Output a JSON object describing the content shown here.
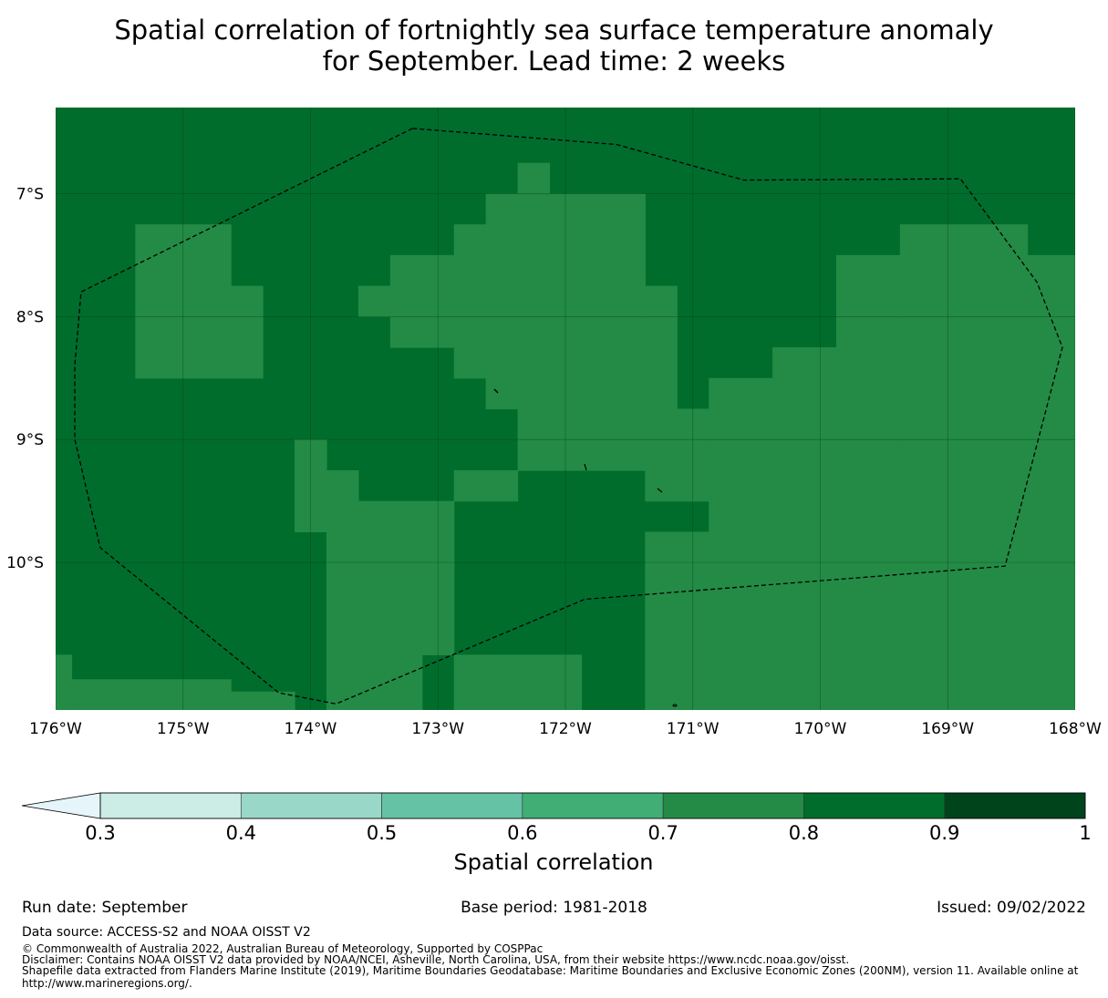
{
  "title_line1": "Spatial correlation of fortnightly sea surface temperature anomaly",
  "title_line2": "for September. Lead time: 2 weeks",
  "map": {
    "lon_range": [
      -176,
      -168
    ],
    "lat_range": [
      -11.2,
      -6.3
    ],
    "lon_ticks": [
      {
        "value": -176,
        "label": "176°W"
      },
      {
        "value": -175,
        "label": "175°W"
      },
      {
        "value": -174,
        "label": "174°W"
      },
      {
        "value": -173,
        "label": "173°W"
      },
      {
        "value": -172,
        "label": "172°W"
      },
      {
        "value": -171,
        "label": "171°W"
      },
      {
        "value": -170,
        "label": "170°W"
      },
      {
        "value": -169,
        "label": "169°W"
      },
      {
        "value": -168,
        "label": "168°W"
      }
    ],
    "lat_ticks": [
      {
        "value": -7,
        "label": "7°S"
      },
      {
        "value": -8,
        "label": "8°S"
      },
      {
        "value": -9,
        "label": "9°S"
      },
      {
        "value": -10,
        "label": "10°S"
      }
    ],
    "field_background_class": "0.8-0.9",
    "field_patches_class_0.7_0.8": [
      {
        "lon": [
          -175.375,
          -174.625
        ],
        "lat": [
          -8.5,
          -7.25
        ]
      },
      {
        "lon": [
          -174.625,
          -174.375
        ],
        "lat": [
          -8.5,
          -7.75
        ]
      },
      {
        "lon": [
          -173.625,
          -172.375
        ],
        "lat": [
          -8.0,
          -7.75
        ]
      },
      {
        "lon": [
          -173.375,
          -172.375
        ],
        "lat": [
          -8.25,
          -7.5
        ]
      },
      {
        "lon": [
          -172.875,
          -172.375
        ],
        "lat": [
          -8.5,
          -7.25
        ]
      },
      {
        "lon": [
          -172.625,
          -171.375
        ],
        "lat": [
          -8.75,
          -7.0
        ]
      },
      {
        "lon": [
          -172.375,
          -172.125
        ],
        "lat": [
          -7.0,
          -6.75
        ]
      },
      {
        "lon": [
          -171.375,
          -171.125
        ],
        "lat": [
          -8.75,
          -7.75
        ]
      },
      {
        "lon": [
          -172.375,
          -170.875
        ],
        "lat": [
          -9.25,
          -8.75
        ]
      },
      {
        "lon": [
          -170.875,
          -170.375
        ],
        "lat": [
          -9.25,
          -8.5
        ]
      },
      {
        "lon": [
          -170.375,
          -169.875
        ],
        "lat": [
          -9.25,
          -8.25
        ]
      },
      {
        "lon": [
          -169.875,
          -169.375
        ],
        "lat": [
          -9.25,
          -7.5
        ]
      },
      {
        "lon": [
          -169.375,
          -168.375
        ],
        "lat": [
          -9.25,
          -7.25
        ]
      },
      {
        "lon": [
          -168.375,
          -168.0
        ],
        "lat": [
          -9.25,
          -7.5
        ]
      },
      {
        "lon": [
          -170.875,
          -168.0
        ],
        "lat": [
          -11.2,
          -9.25
        ]
      },
      {
        "lon": [
          -171.375,
          -170.875
        ],
        "lat": [
          -9.5,
          -9.25
        ]
      },
      {
        "lon": [
          -171.375,
          -170.875
        ],
        "lat": [
          -11.2,
          -9.75
        ]
      },
      {
        "lon": [
          -174.125,
          -173.875
        ],
        "lat": [
          -9.75,
          -9.0
        ]
      },
      {
        "lon": [
          -173.875,
          -173.625
        ],
        "lat": [
          -9.5,
          -9.25
        ]
      },
      {
        "lon": [
          -173.875,
          -172.875
        ],
        "lat": [
          -9.75,
          -9.5
        ]
      },
      {
        "lon": [
          -173.875,
          -172.875
        ],
        "lat": [
          -10.0,
          -9.75
        ]
      },
      {
        "lon": [
          -172.875,
          -172.375
        ],
        "lat": [
          -9.5,
          -9.25
        ]
      },
      {
        "lon": [
          -173.875,
          -173.125
        ],
        "lat": [
          -11.2,
          -10.0
        ]
      },
      {
        "lon": [
          -173.125,
          -172.875
        ],
        "lat": [
          -10.75,
          -10.0
        ]
      },
      {
        "lon": [
          -172.875,
          -171.875
        ],
        "lat": [
          -11.2,
          -10.75
        ]
      },
      {
        "lon": [
          -175.875,
          -174.625
        ],
        "lat": [
          -11.2,
          -10.95
        ]
      },
      {
        "lon": [
          -174.625,
          -174.125
        ],
        "lat": [
          -11.2,
          -11.05
        ]
      },
      {
        "lon": [
          -176.0,
          -175.875
        ],
        "lat": [
          -11.2,
          -10.75
        ]
      }
    ],
    "eez_boundary": [
      [
        -173.2,
        -6.47
      ],
      [
        -171.6,
        -6.6
      ],
      [
        -170.6,
        -6.89
      ],
      [
        -168.9,
        -6.88
      ],
      [
        -168.6,
        -7.3
      ],
      [
        -168.3,
        -7.72
      ],
      [
        -168.1,
        -8.25
      ],
      [
        -168.55,
        -10.03
      ],
      [
        -171.85,
        -10.3
      ],
      [
        -173.8,
        -11.15
      ],
      [
        -174.25,
        -11.06
      ],
      [
        -175.65,
        -9.88
      ],
      [
        -175.85,
        -9.0
      ],
      [
        -175.85,
        -8.4
      ],
      [
        -175.8,
        -7.8
      ],
      [
        -173.2,
        -6.47
      ]
    ]
  },
  "colorbar": {
    "boundaries": [
      0.3,
      0.4,
      0.5,
      0.6,
      0.7,
      0.8,
      0.9,
      1.0
    ],
    "tick_labels": [
      "0.3",
      "0.4",
      "0.5",
      "0.6",
      "0.7",
      "0.8",
      "0.9",
      "1"
    ],
    "colors": [
      "#ccece6",
      "#99d8c9",
      "#66c2a4",
      "#41ae76",
      "#238b45",
      "#006d2c",
      "#00441b"
    ],
    "under_color": "#e5f5f9",
    "label": "Spatial correlation"
  },
  "footer": {
    "run_date": "Run date: September",
    "base_period": "Base period: 1981-2018",
    "issued": "Issued: 09/02/2022",
    "data_source": "Data source: ACCESS-S2 and NOAA OISST V2",
    "copyright": "© Commonwealth of Australia 2022, Australian Bureau of Meteorology, Supported by COSPPac",
    "disclaimer": "Disclaimer: Contains NOAA OISST V2 data provided by NOAA/NCEI, Asheville, North Carolina, USA, from their website https://www.ncdc.noaa.gov/oisst.",
    "shapefile_line1": "Shapefile data extracted from Flanders Marine Institute (2019), Maritime Boundaries Geodatabase: Maritime Boundaries and Exclusive Economic Zones (200NM), version 11. Available online at",
    "shapefile_line2": "http://www.marineregions.org/."
  }
}
